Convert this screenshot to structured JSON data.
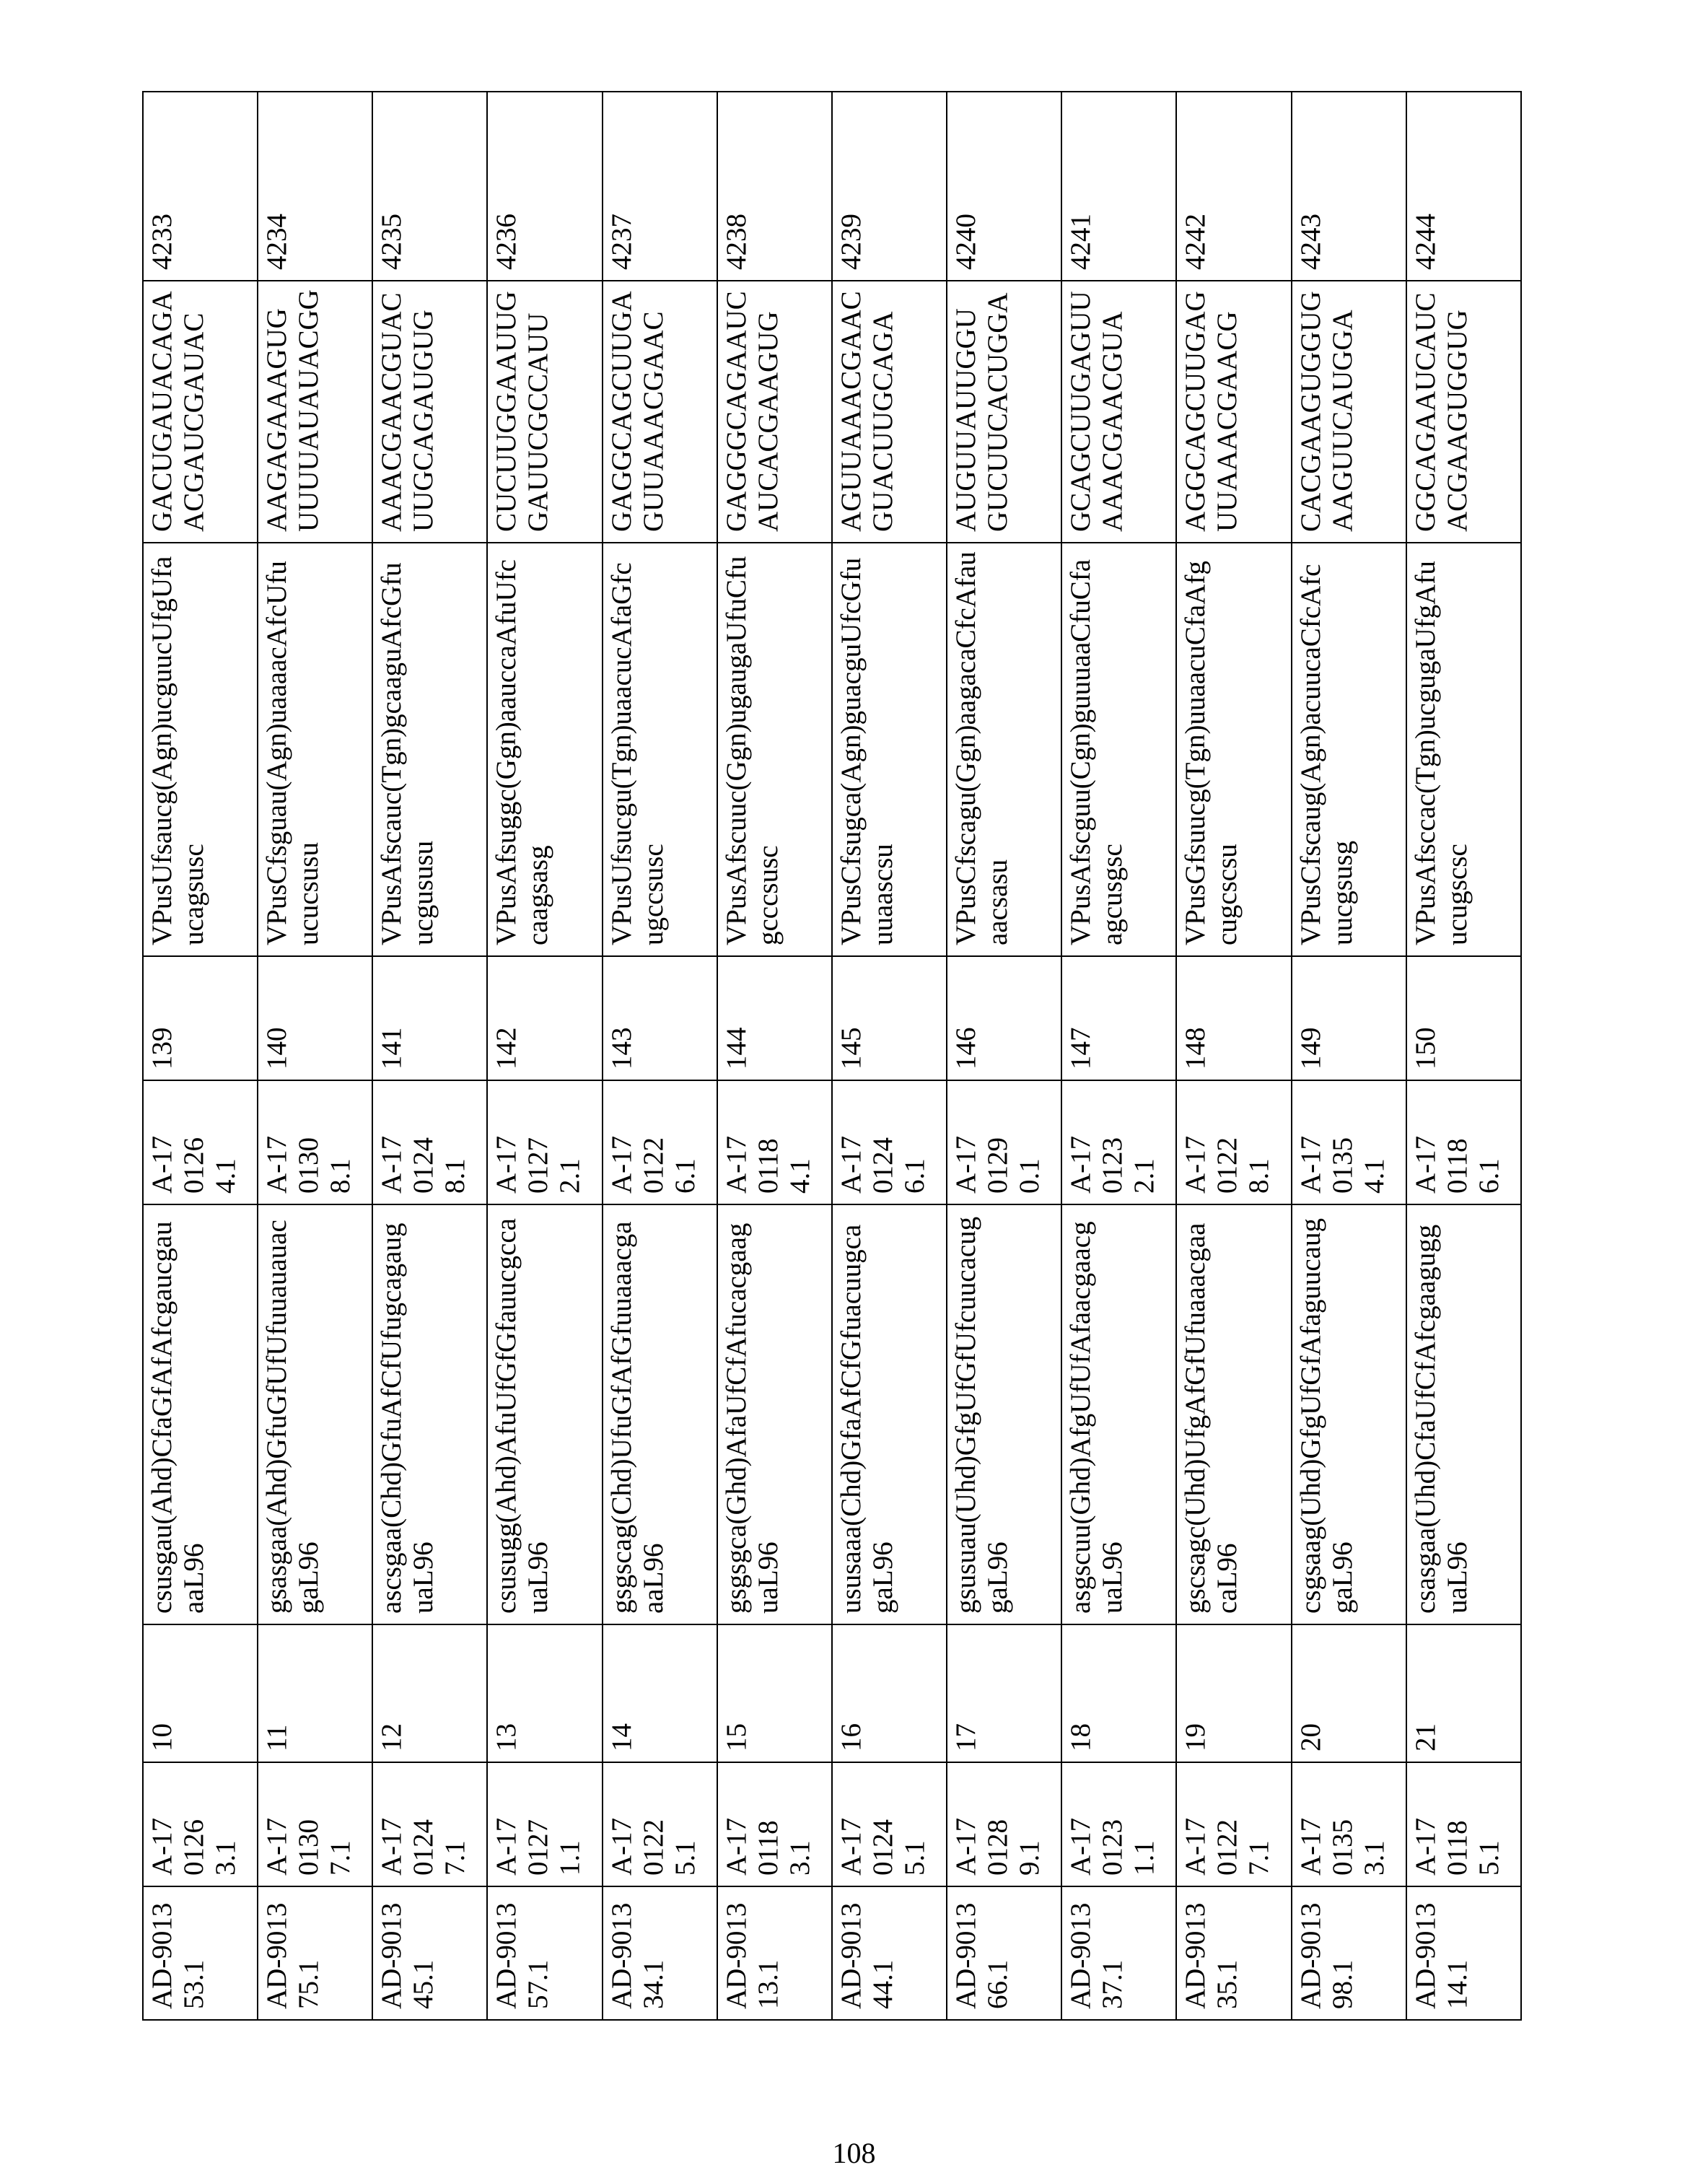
{
  "page_number": "108",
  "table": {
    "rows": [
      [
        "AD-901353.1",
        "A-1701263.1",
        "10",
        "csusgau(Ahd)CfaGfAfAfcgaucgauaaL96",
        "A-1701264.1",
        "139",
        "VPusUfsaucg(Agn)ucguucUfgUfaucagsusc",
        "GACUGAUACAGAACGAUCGAUAC",
        "4233"
      ],
      [
        "AD-901375.1",
        "A-1701307.1",
        "11",
        "gsasgaa(Ahd)GfuGfUfUfuuauauacgaL96",
        "A-1701308.1",
        "140",
        "VPusCfsguau(Agn)uaaaacAfcUfuucucsusu",
        "AAGAGAAAGUGUUUUAUAUACGG",
        "4234"
      ],
      [
        "AD-901345.1",
        "A-1701247.1",
        "12",
        "ascsgaa(Chd)GfuAfCfUfugcagauguaL96",
        "A-1701248.1",
        "141",
        "VPusAfscauc(Tgn)gcaaguAfcGfuucgususu",
        "AAACGAACGUACUUGCAGAUGUG",
        "4235"
      ],
      [
        "AD-901357.1",
        "A-1701271.1",
        "13",
        "csusugg(Ahd)AfuUfGfGfauucgccauaL96",
        "A-1701272.1",
        "142",
        "VPusAfsuggc(Ggn)aauccaAfuUfccaagsasg",
        "CUCUUGGAAUUGGAUUCGCCAUU",
        "4236"
      ],
      [
        "AD-901334.1",
        "A-1701225.1",
        "14",
        "gsgscag(Chd)UfuGfAfGfuuaaacgaaaL96",
        "A-1701226.1",
        "143",
        "VPusUfsucgu(Tgn)uaacucAfaGfcugccsusc",
        "GAGGCAGCUUGAGUUAAACGAAC",
        "4237"
      ],
      [
        "AD-901313.1",
        "A-1701183.1",
        "15",
        "gsgsgca(Ghd)AfaUfCfAfucacgaaguaL96",
        "A-1701184.1",
        "144",
        "VPusAfscuuc(Ggn)ugaugaUfuCfugcccsusc",
        "GAGGGCAGAAUCAUCACGAAGUG",
        "4238"
      ],
      [
        "AD-901344.1",
        "A-1701245.1",
        "16",
        "ususaaa(Chd)GfaAfCfGfuacuugcagaL96",
        "A-1701246.1",
        "145",
        "VPusCfsugca(Agn)guacguUfcGfuuuaascsu",
        "AGUUAAACGAACGUACUUGCAGA",
        "4239"
      ],
      [
        "AD-901366.1",
        "A-1701289.1",
        "17",
        "gsusuau(Uhd)GfgUfGfUfcuucacuggaL96",
        "A-1701290.1",
        "146",
        "VPusCfscagu(Ggn)aagacaCfcAfauaacsasu",
        "AUGUUAUUGGUGUCUUCACUGGA",
        "4240"
      ],
      [
        "AD-901337.1",
        "A-1701231.1",
        "18",
        "asgscuu(Ghd)AfgUfUfAfaacgaacguaL96",
        "A-1701232.1",
        "147",
        "VPusAfscguu(Cgn)guuuaaCfuCfaagcusgsc",
        "GCAGCUUGAGUUAAACGAACGUA",
        "4241"
      ],
      [
        "AD-901335.1",
        "A-1701227.1",
        "19",
        "gscsagc(Uhd)UfgAfGfUfuaaacgaacaL96",
        "A-1701228.1",
        "148",
        "VPusGfsuucg(Tgn)uuaacuCfaAfgcugcscsu",
        "AGGCAGCUUGAGUUAAACGAACG",
        "4242"
      ],
      [
        "AD-901398.1",
        "A-1701353.1",
        "20",
        "csgsaag(Uhd)GfgUfGfAfaguucauggaL96",
        "A-1701354.1",
        "149",
        "VPusCfscaug(Agn)acuucaCfcAfcuucgsusg",
        "CACGAAGUGGUGAAGUUCAUGGA",
        "4243"
      ],
      [
        "AD-901314.1",
        "A-1701185.1",
        "21",
        "csasgaa(Uhd)CfaUfCfAfcgaagugguaL96",
        "A-1701186.1",
        "150",
        "VPusAfsccac(Tgn)ucgugaUfgAfuucugscsc",
        "GGCAGAAUCAUCACGAAGUGGUG",
        "4244"
      ]
    ]
  }
}
